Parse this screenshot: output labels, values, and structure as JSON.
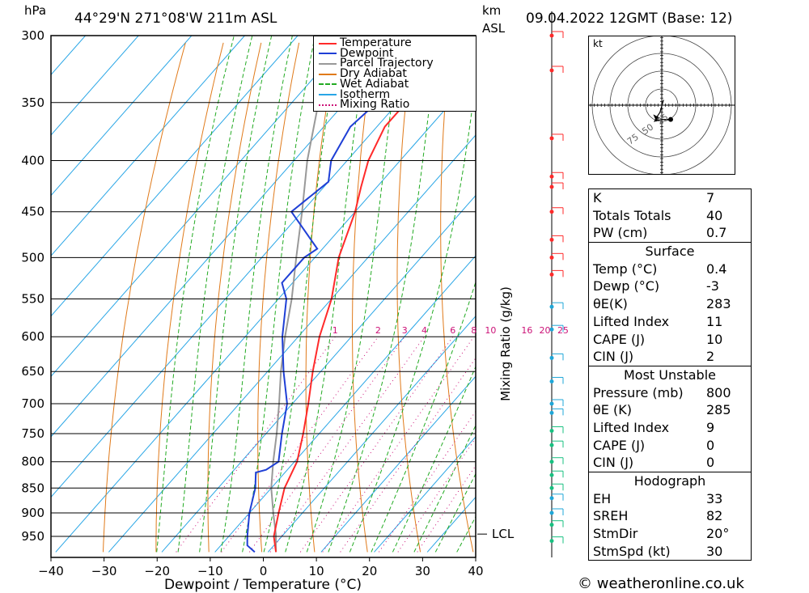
{
  "header": {
    "pressure_unit": "hPa",
    "location": "44°29'N  271°08'W  211m  ASL",
    "height_unit_line1": "km",
    "height_unit_line2": "ASL",
    "datetime": "09.04.2022  12GMT  (Base: 12)"
  },
  "footer": {
    "credit": "© weatheronline.co.uk"
  },
  "colors": {
    "temperature": "#ff2a2a",
    "dewpoint": "#1f3fd6",
    "parcel": "#999999",
    "dry_adiabat": "#e07a1a",
    "wet_adiabat": "#22aa22",
    "isotherm": "#29a6e6",
    "mixing_ratio": "#cc1177",
    "wind_barb_upper": "#ff2a2a",
    "wind_barb_mid": "#1fa7d8",
    "wind_barb_low": "#18c080"
  },
  "legend": [
    {
      "label": "Temperature",
      "style": "temperature"
    },
    {
      "label": "Dewpoint",
      "style": "dewpoint"
    },
    {
      "label": "Parcel Trajectory",
      "style": "parcel"
    },
    {
      "label": "Dry Adiabat",
      "style": "dry_adiabat"
    },
    {
      "label": "Wet Adiabat",
      "style": "wet_adiabat"
    },
    {
      "label": "Isotherm",
      "style": "isotherm"
    },
    {
      "label": "Mixing Ratio",
      "style": "mixing_ratio"
    }
  ],
  "chart_data": {
    "type": "line",
    "xlabel": "Dewpoint / Temperature (°C)",
    "ylabel": "hPa",
    "right_label": "Mixing Ratio (g/kg)",
    "xlim": [
      -40,
      40
    ],
    "ylim": [
      985,
      300
    ],
    "x_ticks": [
      "−40",
      "−30",
      "−20",
      "−10",
      "0",
      "10",
      "20",
      "30",
      "40"
    ],
    "y_ticks": [
      300,
      350,
      400,
      450,
      500,
      550,
      600,
      650,
      700,
      750,
      800,
      850,
      900,
      950
    ],
    "mixing_ratio_labels": [
      "1",
      "2",
      "3",
      "4",
      "6",
      "8",
      "10",
      "16",
      "20",
      "25"
    ],
    "lcl_label": "LCL",
    "lcl_pressure": 945,
    "series": [
      {
        "name": "Temperature",
        "points": [
          [
            985,
            1.5
          ],
          [
            950,
            -1.5
          ],
          [
            900,
            -4.5
          ],
          [
            850,
            -7.5
          ],
          [
            800,
            -9.5
          ],
          [
            750,
            -13
          ],
          [
            700,
            -17
          ],
          [
            650,
            -21.5
          ],
          [
            600,
            -26
          ],
          [
            550,
            -30
          ],
          [
            500,
            -35.5
          ],
          [
            450,
            -40
          ],
          [
            425,
            -43
          ],
          [
            400,
            -46
          ],
          [
            370,
            -48.5
          ],
          [
            350,
            -48.5
          ],
          [
            330,
            -51
          ],
          [
            300,
            -55
          ]
        ]
      },
      {
        "name": "Dewpoint",
        "points": [
          [
            985,
            -2.5
          ],
          [
            970,
            -5
          ],
          [
            950,
            -6.5
          ],
          [
            900,
            -10
          ],
          [
            850,
            -13
          ],
          [
            820,
            -15.5
          ],
          [
            815,
            -14
          ],
          [
            800,
            -13
          ],
          [
            750,
            -17
          ],
          [
            700,
            -21
          ],
          [
            650,
            -27
          ],
          [
            600,
            -33
          ],
          [
            550,
            -38.5
          ],
          [
            530,
            -42
          ],
          [
            500,
            -42
          ],
          [
            490,
            -41
          ],
          [
            450,
            -52
          ],
          [
            420,
            -50
          ],
          [
            400,
            -53
          ],
          [
            370,
            -55
          ],
          [
            350,
            -54
          ],
          [
            340,
            -52
          ],
          [
            300,
            -55
          ]
        ]
      },
      {
        "name": "Parcel Trajectory",
        "points": [
          [
            985,
            1.5
          ],
          [
            945,
            -1.5
          ],
          [
            900,
            -5.5
          ],
          [
            850,
            -10
          ],
          [
            800,
            -14
          ],
          [
            750,
            -18
          ],
          [
            700,
            -22.5
          ],
          [
            650,
            -27.5
          ],
          [
            600,
            -32.5
          ],
          [
            550,
            -37.5
          ],
          [
            500,
            -43.5
          ],
          [
            450,
            -50
          ],
          [
            400,
            -57.5
          ],
          [
            350,
            -65
          ],
          [
            300,
            -73
          ]
        ]
      }
    ],
    "wind_barbs": [
      {
        "pressure": 300,
        "band": "upper"
      },
      {
        "pressure": 325,
        "band": "upper"
      },
      {
        "pressure": 380,
        "band": "upper"
      },
      {
        "pressure": 415,
        "band": "upper"
      },
      {
        "pressure": 425,
        "band": "upper"
      },
      {
        "pressure": 450,
        "band": "upper"
      },
      {
        "pressure": 480,
        "band": "upper"
      },
      {
        "pressure": 500,
        "band": "upper"
      },
      {
        "pressure": 520,
        "band": "upper"
      },
      {
        "pressure": 560,
        "band": "mid"
      },
      {
        "pressure": 590,
        "band": "mid"
      },
      {
        "pressure": 630,
        "band": "mid"
      },
      {
        "pressure": 665,
        "band": "mid"
      },
      {
        "pressure": 700,
        "band": "mid"
      },
      {
        "pressure": 715,
        "band": "mid"
      },
      {
        "pressure": 745,
        "band": "low"
      },
      {
        "pressure": 770,
        "band": "low"
      },
      {
        "pressure": 800,
        "band": "low"
      },
      {
        "pressure": 825,
        "band": "low"
      },
      {
        "pressure": 850,
        "band": "low"
      },
      {
        "pressure": 870,
        "band": "mid"
      },
      {
        "pressure": 900,
        "band": "mid"
      },
      {
        "pressure": 925,
        "band": "low"
      },
      {
        "pressure": 960,
        "band": "low"
      }
    ]
  },
  "hodograph": {
    "unit": "kt",
    "ring_labels": [
      "25",
      "50",
      "75"
    ],
    "points": [
      [
        1,
        3
      ],
      [
        -1,
        -4
      ],
      [
        -3,
        -7
      ],
      [
        -4,
        -9
      ],
      [
        0,
        -8
      ],
      [
        5,
        -8
      ]
    ]
  },
  "indices": {
    "general": [
      {
        "label": "K",
        "value": "7"
      },
      {
        "label": "Totals Totals",
        "value": "40"
      },
      {
        "label": "PW (cm)",
        "value": "0.7"
      }
    ],
    "surface_title": "Surface",
    "surface": [
      {
        "label": "Temp (°C)",
        "value": "0.4"
      },
      {
        "label": "Dewp (°C)",
        "value": "-3"
      },
      {
        "label": "θE(K)",
        "value": "283"
      },
      {
        "label": "Lifted Index",
        "value": "11"
      },
      {
        "label": "CAPE (J)",
        "value": "10"
      },
      {
        "label": "CIN (J)",
        "value": "2"
      }
    ],
    "unstable_title": "Most Unstable",
    "unstable": [
      {
        "label": "Pressure (mb)",
        "value": "800"
      },
      {
        "label": "θE (K)",
        "value": "285"
      },
      {
        "label": "Lifted Index",
        "value": "9"
      },
      {
        "label": "CAPE (J)",
        "value": "0"
      },
      {
        "label": "CIN (J)",
        "value": "0"
      }
    ],
    "hodo_title": "Hodograph",
    "hodo": [
      {
        "label": "EH",
        "value": "33"
      },
      {
        "label": "SREH",
        "value": "82"
      },
      {
        "label": "StmDir",
        "value": "20°"
      },
      {
        "label": "StmSpd (kt)",
        "value": "30"
      }
    ]
  }
}
